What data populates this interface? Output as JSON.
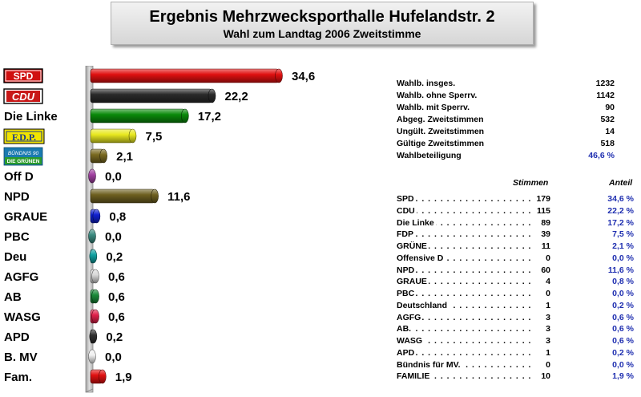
{
  "title": "Ergebnis Mehrzwecksporthalle Hufelandstr. 2",
  "subtitle": "Wahl zum Landtag 2006 Zweitstimme",
  "chart_data": {
    "type": "bar",
    "orientation": "horizontal",
    "categories": [
      "SPD",
      "CDU",
      "Die Linke",
      "F.D.P.",
      "BÜNDNIS 90 DIE GRÜNEN",
      "Off D",
      "NPD",
      "GRAUE",
      "PBC",
      "Deu",
      "AGFG",
      "AB",
      "WASG",
      "APD",
      "B. MV",
      "Fam."
    ],
    "values": [
      34.6,
      22.2,
      17.2,
      7.5,
      2.1,
      0.0,
      11.6,
      0.8,
      0.0,
      0.2,
      0.6,
      0.6,
      0.6,
      0.2,
      0.0,
      1.9
    ],
    "value_labels": [
      "34,6",
      "22,2",
      "17,2",
      "7,5",
      "2,1",
      "0,0",
      "11,6",
      "0,8",
      "0,0",
      "0,2",
      "0,6",
      "0,6",
      "0,6",
      "0,2",
      "0,0",
      "1,9"
    ],
    "colors": [
      "#e01010",
      "#2a2a2a",
      "#0a8a0a",
      "#e8e820",
      "#7a6a20",
      "#a040a0",
      "#6e6020",
      "#1020d0",
      "#3a8a80",
      "#10a0a0",
      "#d8d8d8",
      "#1a8a3a",
      "#e0204a",
      "#303030",
      "#f0f0f0",
      "#e01010"
    ],
    "logo_categories": [
      "SPD",
      "CDU",
      "F.D.P.",
      "BÜNDNIS 90 DIE GRÜNEN"
    ],
    "xlim": [
      0,
      40
    ],
    "grid": false,
    "legend": "none"
  },
  "stats": [
    {
      "label": "Wahlb. insges.",
      "value": "1232"
    },
    {
      "label": "Wahlb. ohne Sperrv.",
      "value": "1142"
    },
    {
      "label": "Wahlb. mit Sperrv.",
      "value": "90"
    },
    {
      "label": "Abgeg. Zweitstimmen",
      "value": "532"
    },
    {
      "label": "Ungült. Zweitstimmen",
      "value": "14"
    },
    {
      "label": "Gültige Zweitstimmen",
      "value": "518"
    },
    {
      "label": "Wahlbeteiligung",
      "value": "46,6 %"
    }
  ],
  "results_header": {
    "votes": "Stimmen",
    "share": "Anteil"
  },
  "results": [
    {
      "party": "SPD",
      "votes": "179",
      "share": "34,6 %"
    },
    {
      "party": "CDU",
      "votes": "115",
      "share": "22,2 %"
    },
    {
      "party": "Die Linke",
      "votes": "89",
      "share": "17,2 %"
    },
    {
      "party": "FDP",
      "votes": "39",
      "share": "7,5 %"
    },
    {
      "party": "GRÜNE",
      "votes": "11",
      "share": "2,1 %"
    },
    {
      "party": "Offensive D",
      "votes": "0",
      "share": "0,0 %"
    },
    {
      "party": "NPD",
      "votes": "60",
      "share": "11,6 %"
    },
    {
      "party": "GRAUE",
      "votes": "4",
      "share": "0,8 %"
    },
    {
      "party": "PBC",
      "votes": "0",
      "share": "0,0 %"
    },
    {
      "party": "Deutschland",
      "votes": "1",
      "share": "0,2 %"
    },
    {
      "party": "AGFG",
      "votes": "3",
      "share": "0,6 %"
    },
    {
      "party": "AB.",
      "votes": "3",
      "share": "0,6 %"
    },
    {
      "party": "WASG",
      "votes": "3",
      "share": "0,6 %"
    },
    {
      "party": "APD",
      "votes": "1",
      "share": "0,2 %"
    },
    {
      "party": "Bündnis für MV.",
      "votes": "0",
      "share": "0,0 %"
    },
    {
      "party": "FAMILIE",
      "votes": "10",
      "share": "1,9 %"
    }
  ]
}
